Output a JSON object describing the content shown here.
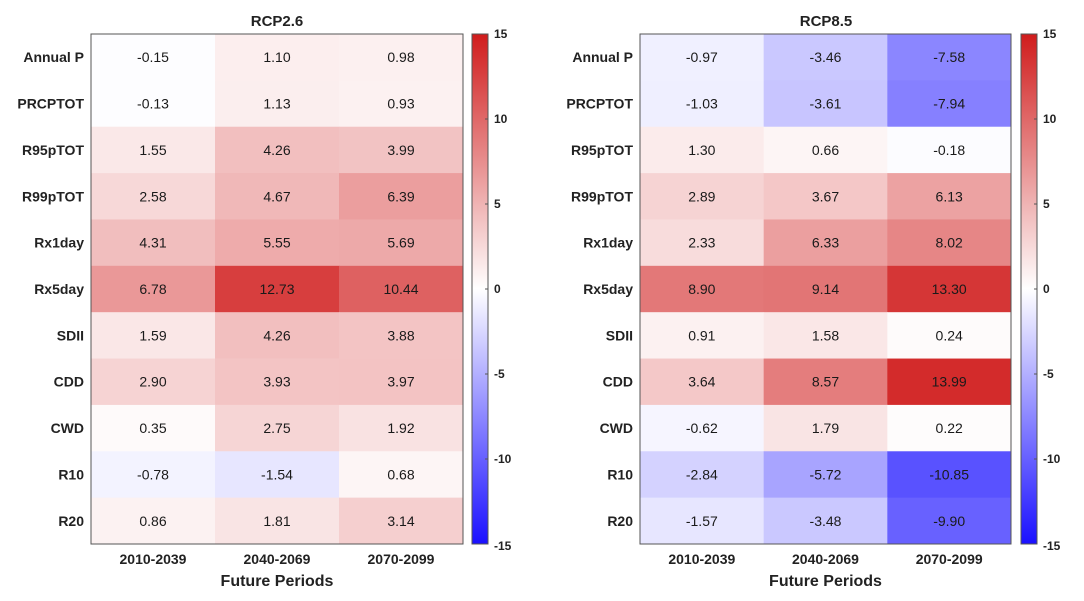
{
  "chart_data": [
    {
      "type": "heatmap",
      "title": "RCP2.6",
      "xlabel": "Future Periods",
      "columns": [
        "2010-2039",
        "2040-2069",
        "2070-2099"
      ],
      "rows": [
        "Annual P",
        "PRCPTOT",
        "R95pTOT",
        "R99pTOT",
        "Rx1day",
        "Rx5day",
        "SDII",
        "CDD",
        "CWD",
        "R10",
        "R20"
      ],
      "values": [
        [
          "-0.15",
          "1.10",
          "0.98"
        ],
        [
          "-0.13",
          "1.13",
          "0.93"
        ],
        [
          "1.55",
          "4.26",
          "3.99"
        ],
        [
          "2.58",
          "4.67",
          "6.39"
        ],
        [
          "4.31",
          "5.55",
          "5.69"
        ],
        [
          "6.78",
          "12.73",
          "10.44"
        ],
        [
          "1.59",
          "4.26",
          "3.88"
        ],
        [
          "2.90",
          "3.93",
          "3.97"
        ],
        [
          "0.35",
          "2.75",
          "1.92"
        ],
        [
          "-0.78",
          "-1.54",
          "0.68"
        ],
        [
          "0.86",
          "1.81",
          "3.14"
        ]
      ],
      "colorbar": {
        "range": [
          -15,
          15
        ],
        "ticks": [
          "15",
          "10",
          "5",
          "0",
          "-5",
          "-10",
          "-15"
        ],
        "colors": {
          "low": "#1a10ff",
          "mid": "#ffffff",
          "high": "#d01c1c"
        }
      }
    },
    {
      "type": "heatmap",
      "title": "RCP8.5",
      "xlabel": "Future Periods",
      "columns": [
        "2010-2039",
        "2040-2069",
        "2070-2099"
      ],
      "rows": [
        "Annual P",
        "PRCPTOT",
        "R95pTOT",
        "R99pTOT",
        "Rx1day",
        "Rx5day",
        "SDII",
        "CDD",
        "CWD",
        "R10",
        "R20"
      ],
      "values": [
        [
          "-0.97",
          "-3.46",
          "-7.58"
        ],
        [
          "-1.03",
          "-3.61",
          "-7.94"
        ],
        [
          "1.30",
          "0.66",
          "-0.18"
        ],
        [
          "2.89",
          "3.67",
          "6.13"
        ],
        [
          "2.33",
          "6.33",
          "8.02"
        ],
        [
          "8.90",
          "9.14",
          "13.30"
        ],
        [
          "0.91",
          "1.58",
          "0.24"
        ],
        [
          "3.64",
          "8.57",
          "13.99"
        ],
        [
          "-0.62",
          "1.79",
          "0.22"
        ],
        [
          "-2.84",
          "-5.72",
          "-10.85"
        ],
        [
          "-1.57",
          "-3.48",
          "-9.90"
        ]
      ],
      "colorbar": {
        "range": [
          -15,
          15
        ],
        "ticks": [
          "15",
          "10",
          "5",
          "0",
          "-5",
          "-10",
          "-15"
        ],
        "colors": {
          "low": "#1a10ff",
          "mid": "#ffffff",
          "high": "#d01c1c"
        }
      }
    }
  ]
}
